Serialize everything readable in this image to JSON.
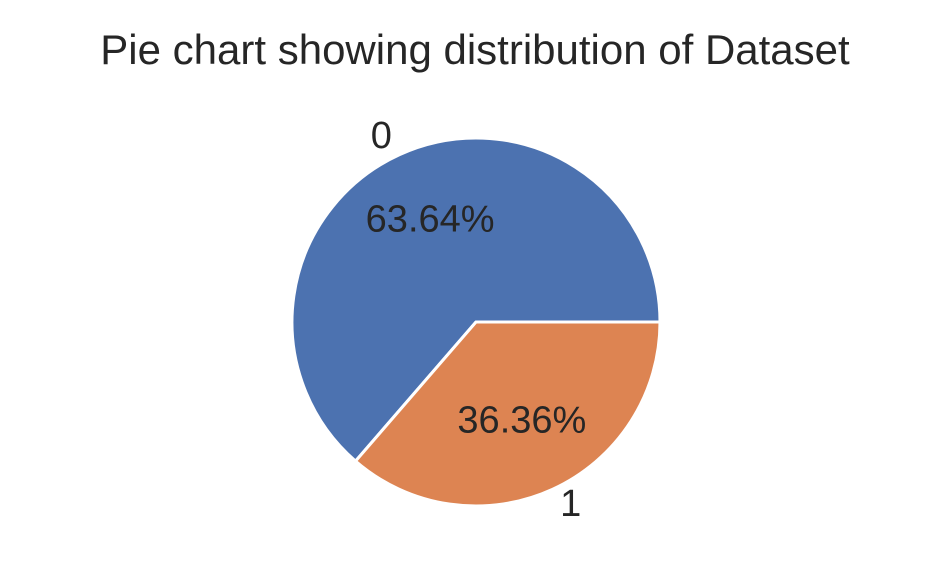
{
  "chart_data": {
    "type": "pie",
    "title": "Pie chart showing distribution of Dataset",
    "categories": [
      "0",
      "1"
    ],
    "values": [
      63.64,
      36.36
    ],
    "percent_labels": [
      "63.64%",
      "36.36%"
    ],
    "colors": [
      "#4C72B0",
      "#DD8452"
    ],
    "slice_edge_color": "#ffffff",
    "start_angle_deg": 0,
    "direction": "counterclockwise"
  }
}
